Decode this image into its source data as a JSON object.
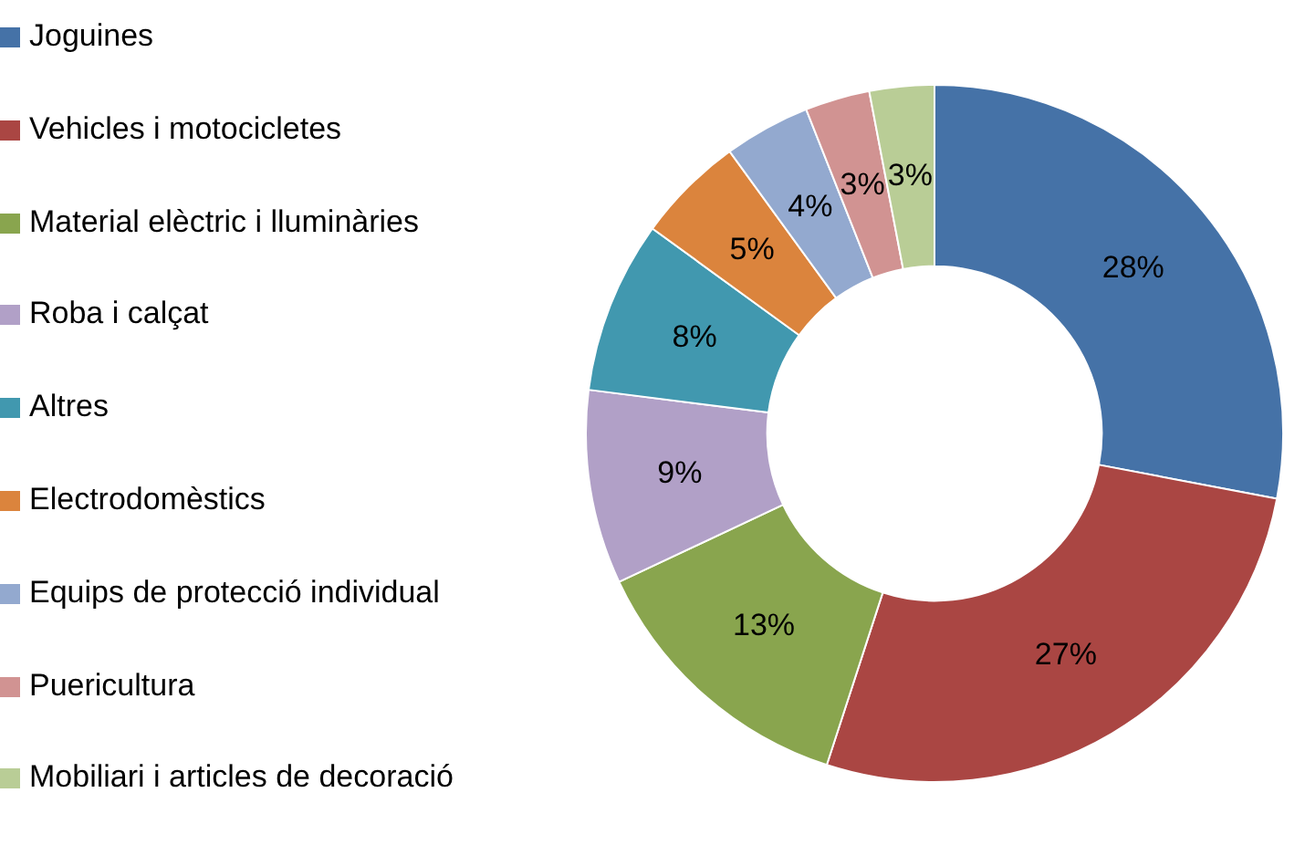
{
  "chart_data": {
    "type": "donut",
    "categories": [
      "Joguines",
      "Vehicles i motocicletes",
      "Material elèctric i lluminàries",
      "Roba i calçat",
      "Altres",
      "Electrodomèstics",
      "Equips de protecció individual",
      "Puericultura",
      "Mobiliari i articles de decoració"
    ],
    "values": [
      28,
      27,
      13,
      9,
      8,
      5,
      4,
      3,
      3
    ],
    "value_labels": [
      "28%",
      "27%",
      "13%",
      "9%",
      "8%",
      "5%",
      "4%",
      "3%",
      "3%"
    ],
    "colors": [
      "#4572a7",
      "#aa4643",
      "#89a54e",
      "#b1a0c7",
      "#4198af",
      "#db843d",
      "#93a9cf",
      "#d19392",
      "#b9cd96"
    ],
    "legend": "left"
  }
}
